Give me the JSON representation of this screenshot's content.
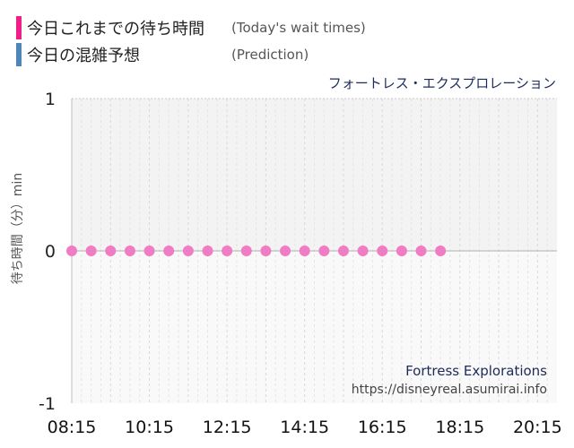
{
  "legend": [
    {
      "label": "今日これまでの待ち時間",
      "sub": "(Today's wait times)",
      "color": "#ee1f8a"
    },
    {
      "label": "今日の混雑予想",
      "sub": "(Prediction)",
      "color": "#4f86b8"
    }
  ],
  "attraction_name": "フォートレス・エクスプロレーション",
  "watermark": {
    "name": "Fortress Explorations",
    "url": "https://disneyreal.asumirai.info"
  },
  "chart_data": {
    "type": "scatter",
    "title": "",
    "xlabel": "",
    "ylabel": "待ち時間（分）min",
    "ylim": [
      -1,
      1
    ],
    "yticks": [
      "1",
      "0",
      "-1"
    ],
    "xticks": [
      "08:15",
      "10:15",
      "12:15",
      "14:15",
      "16:15",
      "18:15",
      "20:15"
    ],
    "xlim": [
      "08:15",
      "20:45"
    ],
    "grid": true,
    "series": [
      {
        "name": "今日これまでの待ち時間",
        "color": "#f07cc3",
        "points": [
          {
            "x": "08:15",
            "y": 0
          },
          {
            "x": "08:45",
            "y": 0
          },
          {
            "x": "09:15",
            "y": 0
          },
          {
            "x": "09:45",
            "y": 0
          },
          {
            "x": "10:15",
            "y": 0
          },
          {
            "x": "10:45",
            "y": 0
          },
          {
            "x": "11:15",
            "y": 0
          },
          {
            "x": "11:45",
            "y": 0
          },
          {
            "x": "12:15",
            "y": 0
          },
          {
            "x": "12:45",
            "y": 0
          },
          {
            "x": "13:15",
            "y": 0
          },
          {
            "x": "13:45",
            "y": 0
          },
          {
            "x": "14:15",
            "y": 0
          },
          {
            "x": "14:45",
            "y": 0
          },
          {
            "x": "15:15",
            "y": 0
          },
          {
            "x": "15:45",
            "y": 0
          },
          {
            "x": "16:15",
            "y": 0
          },
          {
            "x": "16:45",
            "y": 0
          },
          {
            "x": "17:15",
            "y": 0
          },
          {
            "x": "17:45",
            "y": 0
          }
        ]
      }
    ]
  }
}
